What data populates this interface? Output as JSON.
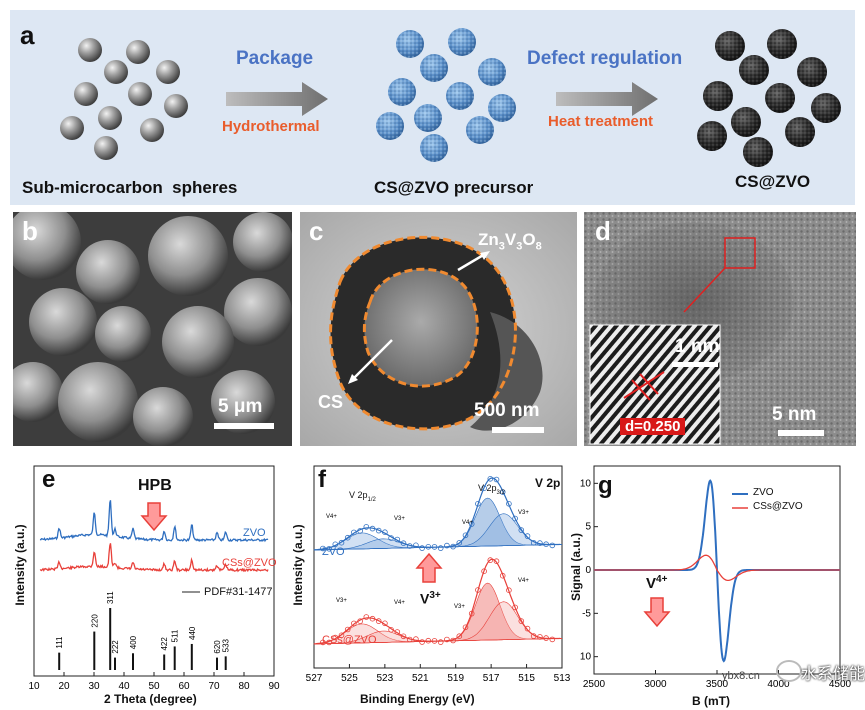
{
  "panel_a": {
    "label": "a",
    "step1_top": "Package",
    "step1_bottom": "Hydrothermal",
    "step2_top": "Defect regulation",
    "step2_bottom": "Heat treatment",
    "cap1": "Sub-microcarbon  spheres",
    "cap2": "CS@ZVO precursor",
    "cap3": "CS@ZVO",
    "colors": {
      "bg": "#dde7f3",
      "blue": "#4a73c4",
      "orange": "#e95d2c"
    }
  },
  "panel_b": {
    "label": "b",
    "scale": "5 μm"
  },
  "panel_c": {
    "label": "c",
    "shell_label": "Zn3V3O8",
    "shell_parts": [
      "Zn",
      "3",
      "V",
      "3",
      "O",
      "8"
    ],
    "core_label": "CS",
    "scale": "500 nm"
  },
  "panel_d": {
    "label": "d",
    "inset_scale": "1 nm",
    "d_spacing": "d=0.250",
    "scale": "5 nm"
  },
  "panel_e": {
    "label": "e",
    "chart_data": {
      "type": "line",
      "xlabel": "2 Theta (degree)",
      "ylabel": "Intensity (a.u.)",
      "xlim": [
        10,
        90
      ],
      "xticks": [
        10,
        20,
        30,
        40,
        50,
        60,
        70,
        80,
        90
      ],
      "annotation": "HPB",
      "series": [
        {
          "name": "ZVO",
          "color": "#2f6fc0"
        },
        {
          "name": "CSs@ZVO",
          "color": "#e8403a"
        }
      ],
      "reference": {
        "name": "PDF#31-1477",
        "peaks": [
          {
            "x": 18.4,
            "h": 0.28,
            "hkl": "111"
          },
          {
            "x": 30.1,
            "h": 0.62,
            "hkl": "220"
          },
          {
            "x": 35.4,
            "h": 1.0,
            "hkl": "311"
          },
          {
            "x": 37.0,
            "h": 0.2,
            "hkl": "222"
          },
          {
            "x": 43.0,
            "h": 0.27,
            "hkl": "400"
          },
          {
            "x": 53.4,
            "h": 0.25,
            "hkl": "422"
          },
          {
            "x": 56.9,
            "h": 0.38,
            "hkl": "511"
          },
          {
            "x": 62.6,
            "h": 0.42,
            "hkl": "440"
          },
          {
            "x": 71.0,
            "h": 0.2,
            "hkl": "620"
          },
          {
            "x": 73.9,
            "h": 0.22,
            "hkl": "533"
          }
        ]
      }
    }
  },
  "panel_f": {
    "label": "f",
    "chart_data": {
      "type": "line",
      "xlabel": "Binding Energy (eV)",
      "ylabel": "Intensity (a.u.)",
      "xlim": [
        527,
        513
      ],
      "xticks": [
        527,
        525,
        523,
        521,
        519,
        517,
        515,
        513
      ],
      "title": "V 2p",
      "annotations": [
        "V 2p1/2",
        "V 2p3/2",
        "V4+",
        "V3+",
        "V4+",
        "V3+",
        "V3+",
        "V4+",
        "V3+",
        "V4+",
        "V3+"
      ],
      "peak_label_1": "V 2p",
      "peak_label_1_sub": "1/2",
      "peak_label_2": "V 2p",
      "peak_label_2_sub": "3/2",
      "mid_label": "V",
      "mid_label_sup": "3+",
      "series": [
        {
          "name": "ZVO",
          "color": "#2f6fc0"
        },
        {
          "name": "CSs@ZVO",
          "color": "#e8403a"
        }
      ]
    }
  },
  "panel_g": {
    "label": "g",
    "chart_data": {
      "type": "line",
      "xlabel": "B (mT)",
      "ylabel": "Signal (a.u.)",
      "xlim": [
        2500,
        4500
      ],
      "ylim": [
        -12,
        12
      ],
      "xticks": [
        2500,
        3000,
        3500,
        4000,
        4500
      ],
      "yticks": [
        -10,
        -5,
        0,
        5,
        10
      ],
      "annotation": "V4+",
      "annotation_main": "V",
      "annotation_sup": "4+",
      "series": [
        {
          "name": "ZVO",
          "color": "#2f6fc0",
          "peak": 10.3,
          "trough": -10.5
        },
        {
          "name": "CSs@ZVO",
          "color": "#e8403a",
          "peak": 1.7,
          "trough": -1.2
        }
      ]
    }
  },
  "watermark": {
    "text": "水系储能",
    "url": "ybx8.cn"
  }
}
